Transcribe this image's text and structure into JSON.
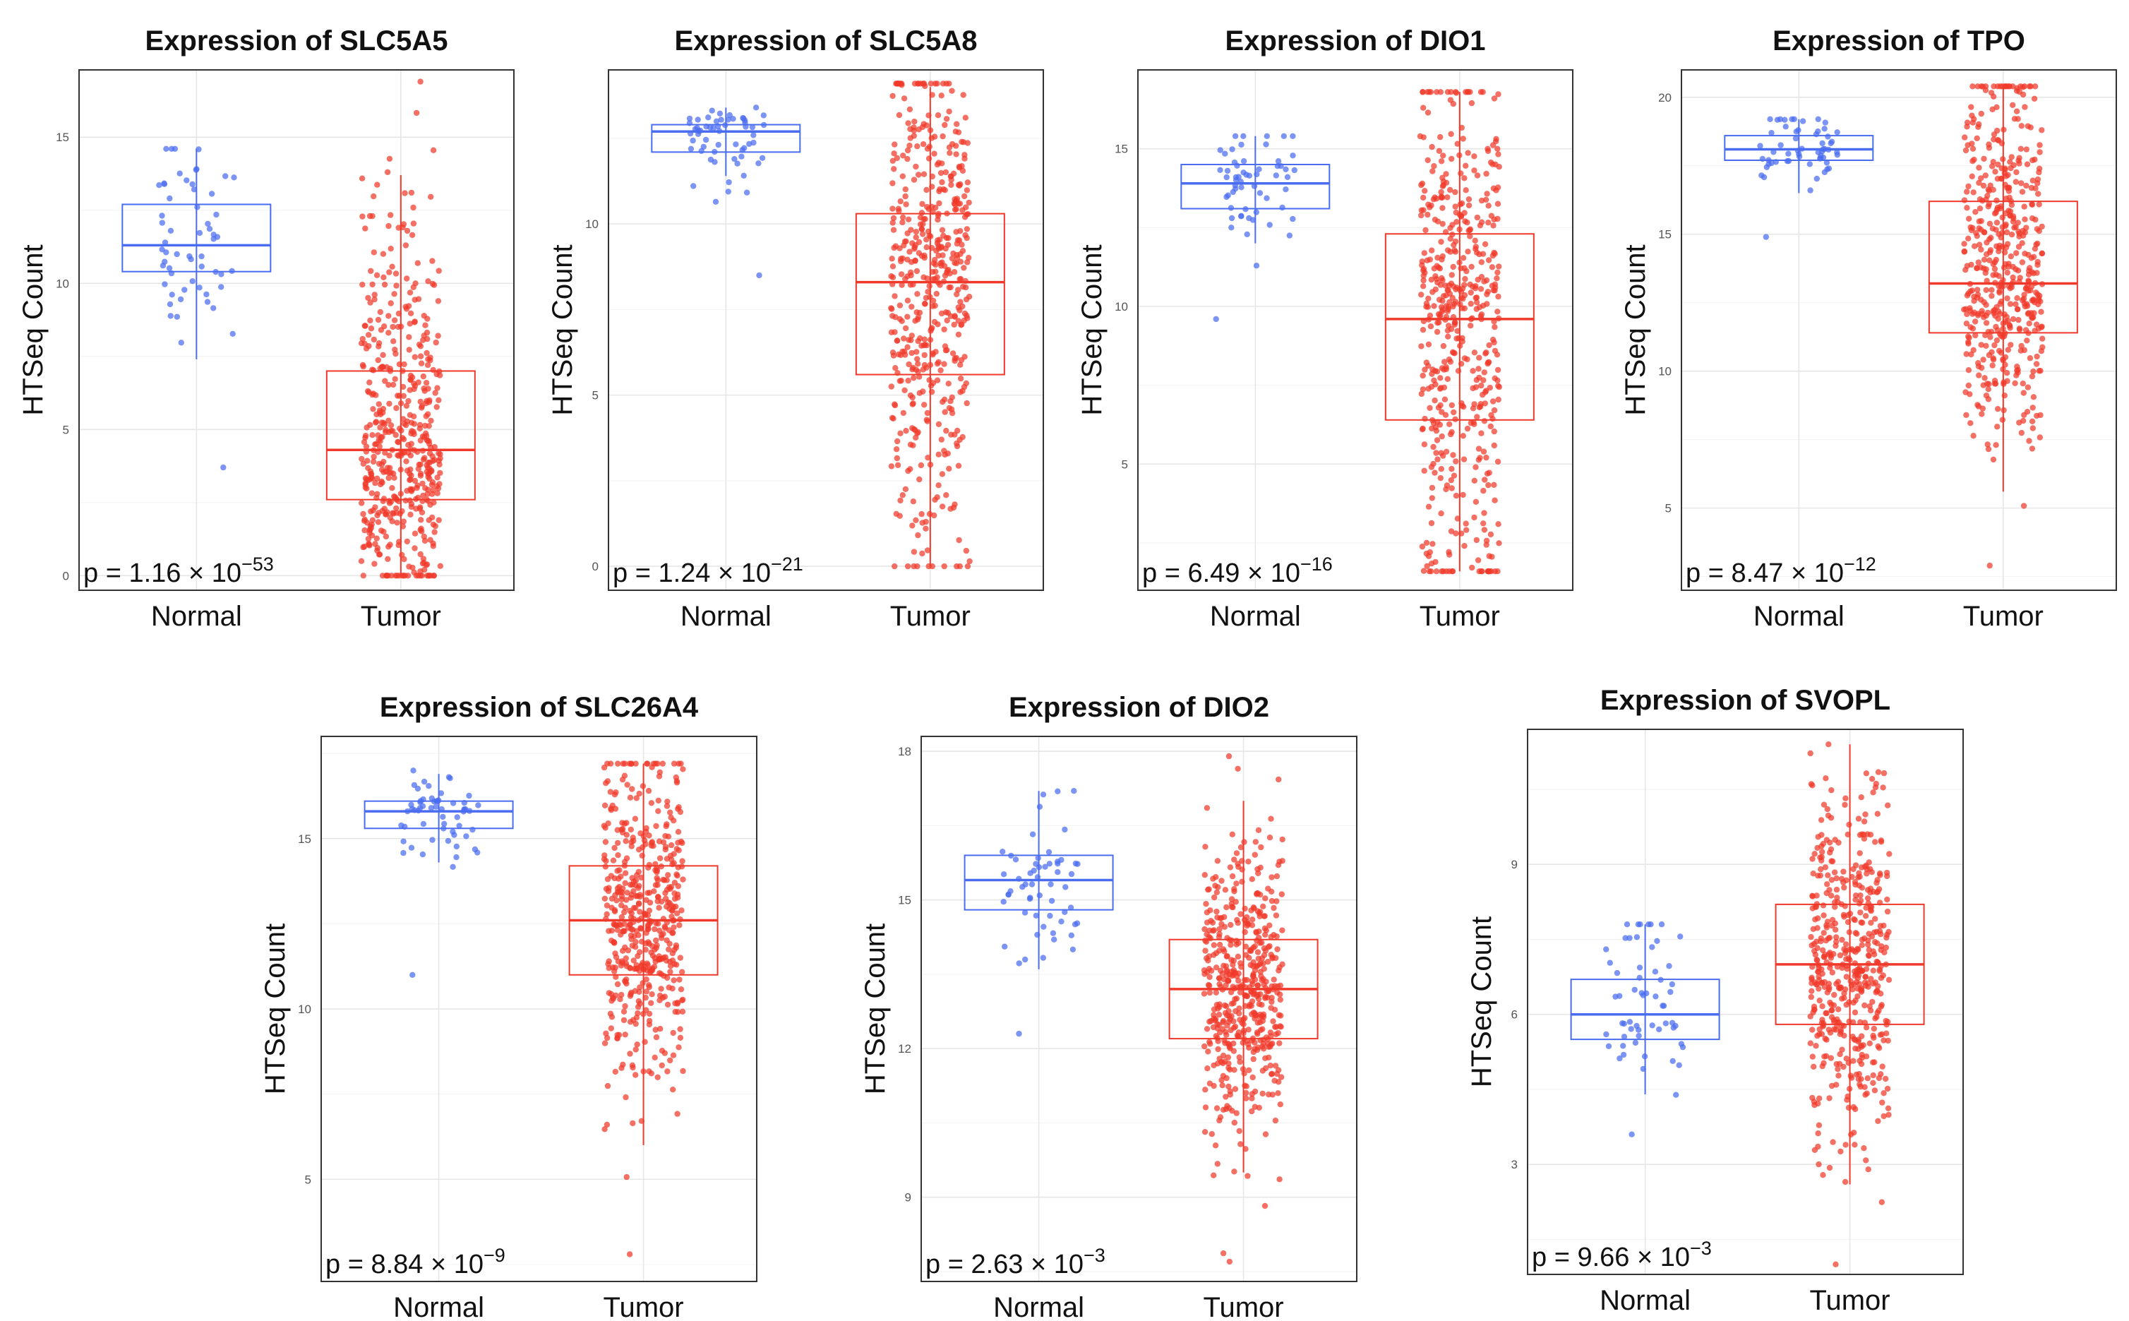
{
  "chart_data": [
    {
      "type": "box",
      "title": "Expression of SLC5A5",
      "ylabel": "HTSeq Count",
      "categories": [
        "Normal",
        "Tumor"
      ],
      "ylim": [
        -0.5,
        17.3
      ],
      "yticks": [
        0,
        5,
        10,
        15
      ],
      "pvalue": {
        "base": "p = 1.16 × 10",
        "exponent": "−53"
      },
      "series": [
        {
          "name": "Normal",
          "color": "#4a6cf0",
          "q1": 10.4,
          "median": 11.3,
          "q3": 12.7,
          "whisker_low": 7.4,
          "whisker_high": 14.6,
          "points_min": 3.7,
          "points_max": 14.6,
          "n": 59
        },
        {
          "name": "Tumor",
          "color": "#f0392a",
          "q1": 2.6,
          "median": 4.3,
          "q3": 7.0,
          "whisker_low": 0.0,
          "whisker_high": 13.7,
          "points_min": 0.0,
          "points_max": 16.9,
          "n": 510
        }
      ]
    },
    {
      "type": "box",
      "title": "Expression of SLC5A8",
      "ylabel": "HTSeq Count",
      "categories": [
        "Normal",
        "Tumor"
      ],
      "ylim": [
        -0.7,
        14.5
      ],
      "yticks": [
        0,
        5,
        10
      ],
      "pvalue": {
        "base": "p = 1.24 × 10",
        "exponent": "−21"
      },
      "series": [
        {
          "name": "Normal",
          "color": "#4a6cf0",
          "q1": 12.1,
          "median": 12.7,
          "q3": 12.9,
          "whisker_low": 11.4,
          "whisker_high": 13.4,
          "points_min": 8.5,
          "points_max": 13.4,
          "n": 59
        },
        {
          "name": "Tumor",
          "color": "#f0392a",
          "q1": 5.6,
          "median": 8.3,
          "q3": 10.3,
          "whisker_low": 0.0,
          "whisker_high": 14.0,
          "points_min": 0.0,
          "points_max": 14.1,
          "n": 510
        }
      ]
    },
    {
      "type": "box",
      "title": "Expression of DIO1",
      "ylabel": "HTSeq Count",
      "categories": [
        "Normal",
        "Tumor"
      ],
      "ylim": [
        1.0,
        17.5
      ],
      "yticks": [
        5,
        10,
        15
      ],
      "pvalue": {
        "base": "p = 6.49 × 10",
        "exponent": "−16"
      },
      "series": [
        {
          "name": "Normal",
          "color": "#4a6cf0",
          "q1": 13.1,
          "median": 13.9,
          "q3": 14.5,
          "whisker_low": 12.0,
          "whisker_high": 15.4,
          "points_min": 9.6,
          "points_max": 15.4,
          "n": 59
        },
        {
          "name": "Tumor",
          "color": "#f0392a",
          "q1": 6.4,
          "median": 9.6,
          "q3": 12.3,
          "whisker_low": 1.6,
          "whisker_high": 16.8,
          "points_min": 1.6,
          "points_max": 16.8,
          "n": 510
        }
      ]
    },
    {
      "type": "box",
      "title": "Expression of TPO",
      "ylabel": "HTSeq Count",
      "categories": [
        "Normal",
        "Tumor"
      ],
      "ylim": [
        2.0,
        21.0
      ],
      "yticks": [
        5,
        10,
        15,
        20
      ],
      "pvalue": {
        "base": "p = 8.47 × 10",
        "exponent": "−12"
      },
      "series": [
        {
          "name": "Normal",
          "color": "#4a6cf0",
          "q1": 17.7,
          "median": 18.1,
          "q3": 18.6,
          "whisker_low": 16.5,
          "whisker_high": 19.2,
          "points_min": 14.9,
          "points_max": 19.2,
          "n": 59
        },
        {
          "name": "Tumor",
          "color": "#f0392a",
          "q1": 11.4,
          "median": 13.2,
          "q3": 16.2,
          "whisker_low": 5.6,
          "whisker_high": 20.4,
          "points_min": 2.9,
          "points_max": 20.4,
          "n": 510
        }
      ]
    },
    {
      "type": "box",
      "title": "Expression of SLC26A4",
      "ylabel": "HTSeq Count",
      "categories": [
        "Normal",
        "Tumor"
      ],
      "ylim": [
        2.0,
        18.0
      ],
      "yticks": [
        5,
        10,
        15
      ],
      "pvalue": {
        "base": "p = 8.84 × 10",
        "exponent": "−9"
      },
      "series": [
        {
          "name": "Normal",
          "color": "#4a6cf0",
          "q1": 15.3,
          "median": 15.8,
          "q3": 16.1,
          "whisker_low": 14.3,
          "whisker_high": 16.9,
          "points_min": 11.0,
          "points_max": 17.0,
          "n": 59
        },
        {
          "name": "Tumor",
          "color": "#f0392a",
          "q1": 11.0,
          "median": 12.6,
          "q3": 14.2,
          "whisker_low": 6.0,
          "whisker_high": 17.2,
          "points_min": 2.8,
          "points_max": 17.2,
          "n": 510
        }
      ]
    },
    {
      "type": "box",
      "title": "Expression of DIO2",
      "ylabel": "HTSeq Count",
      "categories": [
        "Normal",
        "Tumor"
      ],
      "ylim": [
        7.3,
        18.3
      ],
      "yticks": [
        9,
        12,
        15,
        18
      ],
      "pvalue": {
        "base": "p = 2.63 × 10",
        "exponent": "−3"
      },
      "series": [
        {
          "name": "Normal",
          "color": "#4a6cf0",
          "q1": 14.8,
          "median": 15.4,
          "q3": 15.9,
          "whisker_low": 13.6,
          "whisker_high": 17.2,
          "points_min": 12.3,
          "points_max": 17.2,
          "n": 59
        },
        {
          "name": "Tumor",
          "color": "#f0392a",
          "q1": 12.2,
          "median": 13.2,
          "q3": 14.2,
          "whisker_low": 9.5,
          "whisker_high": 17.0,
          "points_min": 7.7,
          "points_max": 17.9,
          "n": 510
        }
      ]
    },
    {
      "type": "box",
      "title": "Expression of SVOPL",
      "ylabel": "HTSeq Count",
      "categories": [
        "Normal",
        "Tumor"
      ],
      "ylim": [
        0.8,
        11.7
      ],
      "yticks": [
        3,
        6,
        9
      ],
      "pvalue": {
        "base": "p = 9.66 × 10",
        "exponent": "−3"
      },
      "series": [
        {
          "name": "Normal",
          "color": "#4a6cf0",
          "q1": 5.5,
          "median": 6.0,
          "q3": 6.7,
          "whisker_low": 4.4,
          "whisker_high": 7.8,
          "points_min": 3.6,
          "points_max": 7.8,
          "n": 59
        },
        {
          "name": "Tumor",
          "color": "#f0392a",
          "q1": 5.8,
          "median": 7.0,
          "q3": 8.2,
          "whisker_low": 2.6,
          "whisker_high": 11.4,
          "points_min": 1.0,
          "points_max": 11.4,
          "n": 510
        }
      ]
    }
  ]
}
